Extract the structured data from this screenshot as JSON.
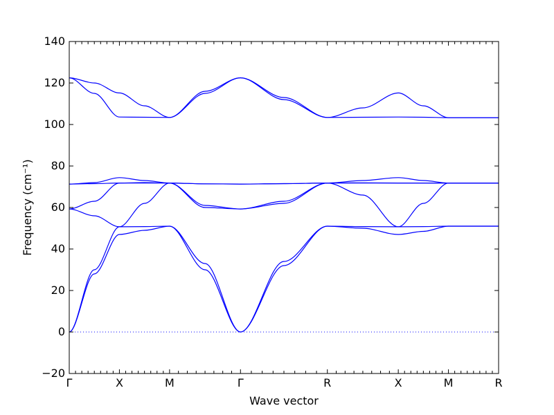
{
  "chart_data": {
    "type": "line",
    "title": "",
    "xlabel": "Wave vector",
    "ylabel": "Frequency (cm⁻¹)",
    "ylim": [
      -20,
      140
    ],
    "yticks": [
      -20,
      0,
      20,
      40,
      60,
      80,
      100,
      120,
      140
    ],
    "grid": false,
    "zero_line": {
      "y": 0,
      "style": "dotted"
    },
    "line_color": "#0000ff",
    "segment_minor_ticks": 7,
    "x_high_symmetry_points": [
      {
        "label": "Γ",
        "position": 0.0
      },
      {
        "label": "X",
        "position": 0.5
      },
      {
        "label": "M",
        "position": 1.0
      },
      {
        "label": "Γ",
        "position": 1.707
      },
      {
        "label": "R",
        "position": 2.573
      },
      {
        "label": "X",
        "position": 3.28
      },
      {
        "label": "M",
        "position": 3.78
      },
      {
        "label": "R",
        "position": 4.28
      }
    ],
    "series": [
      {
        "x": [
          0,
          0.25,
          0.5,
          0.75,
          1.0,
          1.354,
          1.707,
          2.14,
          2.573,
          2.927,
          3.28,
          3.53,
          3.78,
          4.03,
          4.28
        ],
        "y": [
          0,
          28,
          47,
          49,
          51,
          30,
          0,
          32,
          51,
          50,
          47,
          48.5,
          51,
          51,
          51
        ]
      },
      {
        "x": [
          0,
          0.25,
          0.5,
          0.75,
          1.0,
          1.354,
          1.707,
          2.14,
          2.573,
          2.927,
          3.28,
          3.53,
          3.78,
          4.03,
          4.28
        ],
        "y": [
          0,
          30,
          50.7,
          50.8,
          51,
          33,
          0,
          34,
          51,
          50.8,
          50.7,
          50.8,
          51,
          51,
          51
        ]
      },
      {
        "x": [
          0,
          0.25,
          0.5,
          0.75,
          1.0,
          1.354,
          1.707,
          2.14,
          2.573,
          2.927,
          3.28,
          3.53,
          3.78,
          4.03,
          4.28
        ],
        "y": [
          59.3,
          56,
          50.7,
          62,
          71.8,
          60,
          59.3,
          62,
          71.8,
          66,
          50.7,
          62,
          71.8,
          71.8,
          71.8
        ]
      },
      {
        "x": [
          0,
          0.25,
          0.5,
          0.75,
          1.0,
          1.354,
          1.707,
          2.14,
          2.573,
          2.927,
          3.28,
          3.53,
          3.78,
          4.03,
          4.28
        ],
        "y": [
          59.3,
          63,
          71.8,
          72,
          71.8,
          61,
          59.3,
          63,
          71.8,
          71.9,
          71.8,
          71.8,
          71.8,
          71.8,
          71.8
        ]
      },
      {
        "x": [
          0,
          0.25,
          0.5,
          0.75,
          1.0,
          1.354,
          1.707,
          2.14,
          2.573,
          2.927,
          3.28,
          3.53,
          3.78,
          4.03,
          4.28
        ],
        "y": [
          71.3,
          72,
          74.4,
          73,
          71.8,
          71.4,
          71.3,
          71.5,
          71.8,
          73,
          74.4,
          73,
          71.8,
          71.8,
          71.8
        ]
      },
      {
        "x": [
          0,
          0.25,
          0.5,
          0.75,
          1.0,
          1.354,
          1.707,
          2.14,
          2.573,
          2.927,
          3.28,
          3.53,
          3.78,
          4.03,
          4.28
        ],
        "y": [
          71.3,
          71.5,
          71.8,
          71.8,
          71.8,
          71.4,
          71.3,
          71.5,
          71.8,
          71.8,
          71.8,
          71.8,
          71.8,
          71.8,
          71.8
        ]
      },
      {
        "x": [
          0,
          0.25,
          0.5,
          0.75,
          1.0,
          1.354,
          1.707,
          2.14,
          2.573,
          2.927,
          3.28,
          3.53,
          3.78,
          4.03,
          4.28
        ],
        "y": [
          122.5,
          115,
          103.6,
          103.5,
          103.4,
          115,
          122.5,
          112,
          103.4,
          103.5,
          103.6,
          103.5,
          103.3,
          103.3,
          103.3
        ]
      },
      {
        "x": [
          0,
          0.25,
          0.5,
          0.75,
          1.0,
          1.354,
          1.707,
          2.14,
          2.573,
          2.927,
          3.28,
          3.53,
          3.78,
          4.03,
          4.28
        ],
        "y": [
          122.5,
          120,
          115.2,
          109,
          103.4,
          116,
          122.5,
          113,
          103.4,
          108,
          115.2,
          109,
          103.3,
          103.3,
          103.3
        ]
      }
    ]
  }
}
